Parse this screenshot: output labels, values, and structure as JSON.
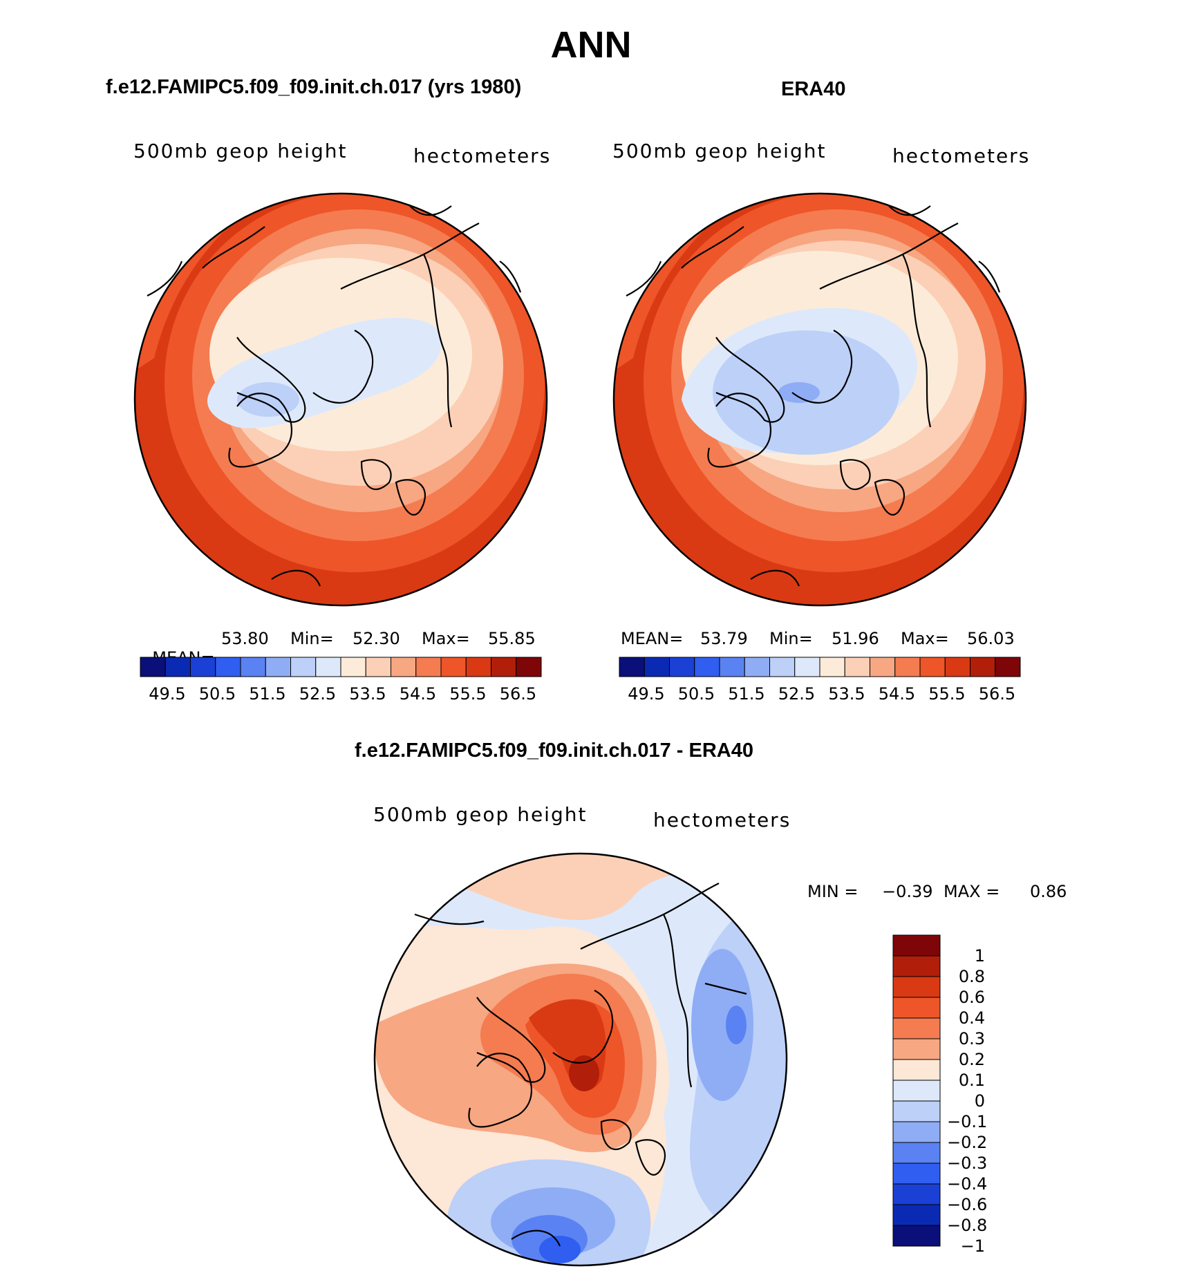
{
  "header": {
    "title": "ANN",
    "left_panel_title": "f.e12.FAMIPC5.f09_f09.init.ch.017 (yrs 1980)",
    "right_panel_title": "ERA40",
    "diff_panel_title": "f.e12.FAMIPC5.f09_f09.init.ch.017 - ERA40"
  },
  "panels": {
    "model": {
      "variable": "500mb geop height",
      "units": "hectometers",
      "mean_label": "MEAN=",
      "mean": "53.80",
      "min_label": "Min=",
      "min": "52.30",
      "max_label": "Max=",
      "max": "55.85"
    },
    "obs": {
      "variable": "500mb geop height",
      "units": "hectometers",
      "mean_label": "MEAN=",
      "mean": "53.79",
      "min_label": "Min=",
      "min": "51.96",
      "max_label": "Max=",
      "max": "56.03"
    },
    "diff": {
      "variable": "500mb geop height",
      "units": "hectometers",
      "min_label": "MIN =",
      "min": "−0.39",
      "max_label": "MAX =",
      "max": "0.86"
    }
  },
  "colorbar_top": {
    "colors": [
      "#0a0f7a",
      "#0b2ab4",
      "#1a40d6",
      "#2f5ef0",
      "#5a82f2",
      "#8fadf5",
      "#bcd0f8",
      "#dde9fb",
      "#fdebd9",
      "#fcd0b6",
      "#f7a782",
      "#f47c50",
      "#ee5528",
      "#d93a13",
      "#b11e0a",
      "#7e0608"
    ],
    "ticks": [
      "49.5",
      "50.5",
      "51.5",
      "52.5",
      "53.5",
      "54.5",
      "55.5",
      "56.5"
    ]
  },
  "colorbar_diff": {
    "colors": [
      "#7e0608",
      "#b11e0a",
      "#d93a13",
      "#ee5528",
      "#f47c50",
      "#f7a782",
      "#fde7d6",
      "#dde9fb",
      "#bcd0f8",
      "#8fadf5",
      "#5a82f2",
      "#2f5ef0",
      "#1a40d6",
      "#0b2ab4",
      "#0a0f7a"
    ],
    "ticks": [
      "1",
      "0.8",
      "0.6",
      "0.4",
      "0.3",
      "0.2",
      "0.1",
      "0",
      "−0.1",
      "−0.2",
      "−0.3",
      "−0.4",
      "−0.6",
      "−0.8",
      "−1"
    ]
  }
}
